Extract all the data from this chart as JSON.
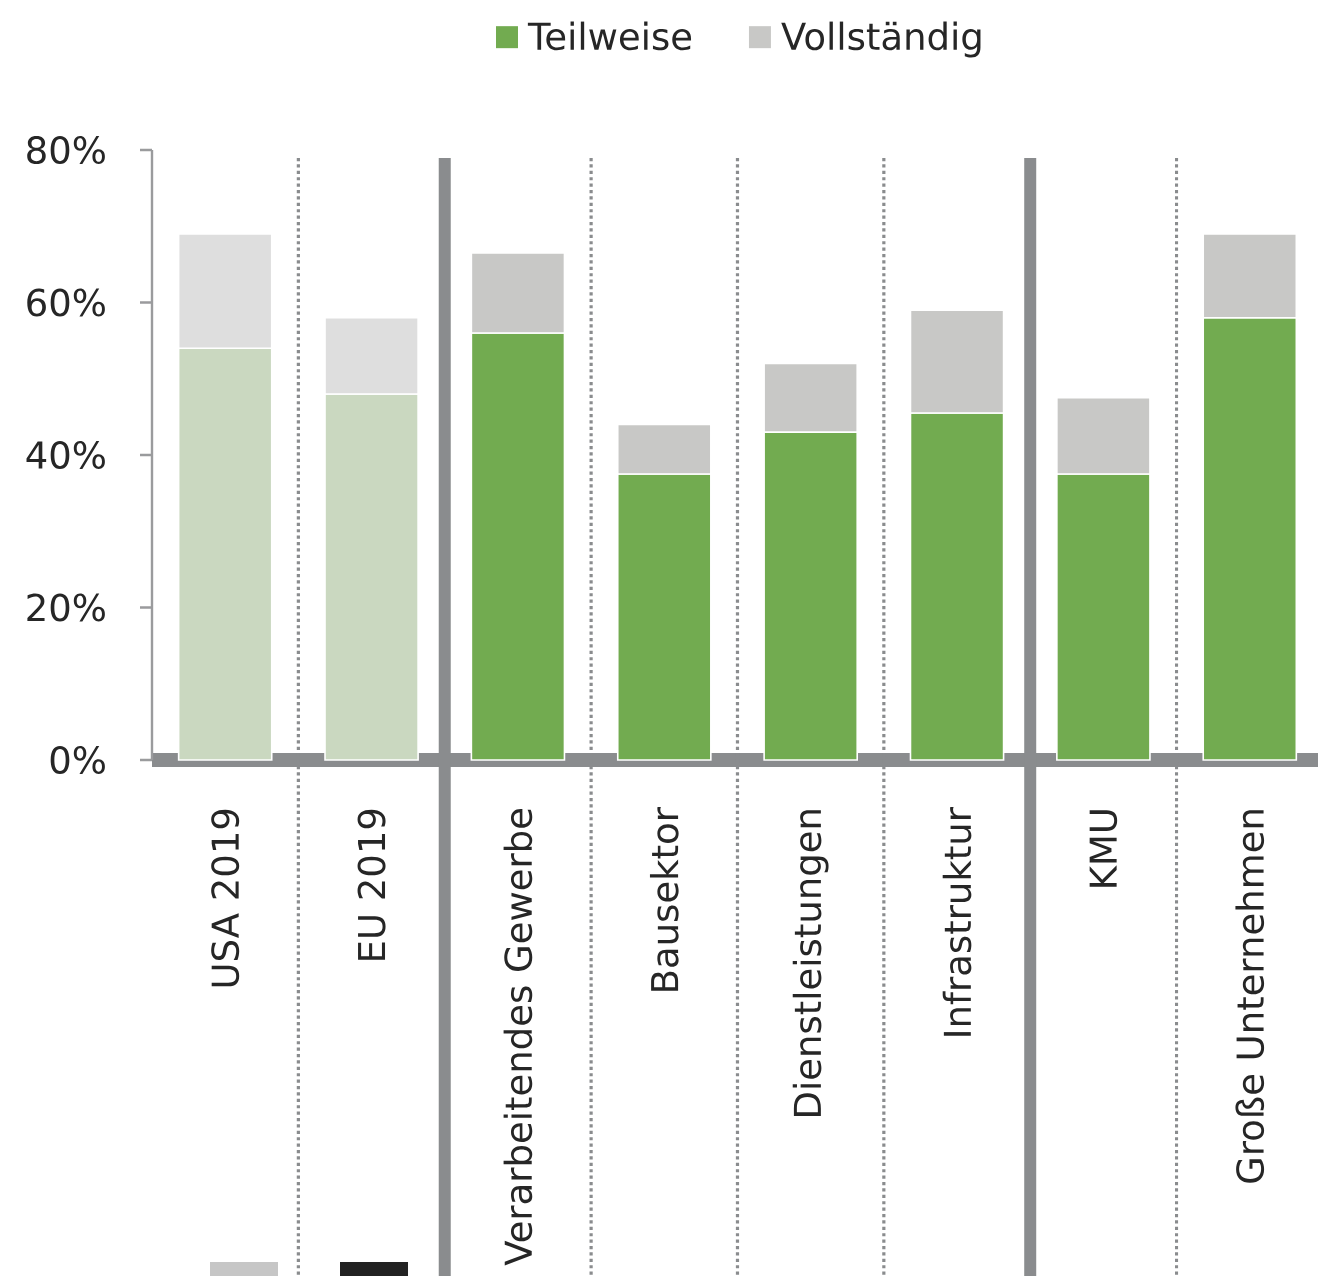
{
  "chart_data": {
    "type": "bar",
    "stacked": true,
    "categories": [
      "USA 2019",
      "EU 2019",
      "Verarbeitendes Gewerbe",
      "Bausektor",
      "Dienstleistungen",
      "Infrastruktur",
      "KMU",
      "Große Unternehmen"
    ],
    "series": [
      {
        "name": "Teilweise",
        "color": "#72ab50",
        "colors": [
          "#cad8c0",
          "#cad8c0",
          "#72ab50",
          "#72ab50",
          "#72ab50",
          "#72ab50",
          "#72ab50",
          "#72ab50"
        ],
        "values": [
          54,
          48,
          56,
          37.5,
          43,
          45.5,
          37.5,
          58
        ]
      },
      {
        "name": "Vollständig",
        "color": "#c8c8c6",
        "colors": [
          "#dedede",
          "#dedede",
          "#c8c8c6",
          "#c8c8c6",
          "#c8c8c6",
          "#c8c8c6",
          "#c8c8c6",
          "#c8c8c6"
        ],
        "values": [
          15,
          10,
          10.5,
          6.5,
          9,
          13.5,
          10,
          11
        ]
      }
    ],
    "ylim": [
      0,
      80
    ],
    "yticks": [
      {
        "value": 0,
        "label": "0%"
      },
      {
        "value": 20,
        "label": "20%"
      },
      {
        "value": 40,
        "label": "40%"
      },
      {
        "value": 60,
        "label": "60%"
      },
      {
        "value": 80,
        "label": "80%"
      }
    ],
    "legend": "top"
  }
}
